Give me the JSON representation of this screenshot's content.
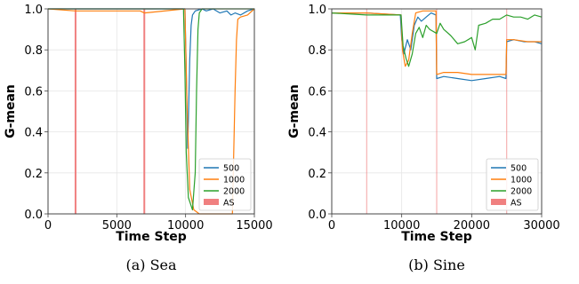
{
  "colors": {
    "s500": "#1f77b4",
    "s1000": "#ff7f0e",
    "s2000": "#2ca02c",
    "as": "#f08080"
  },
  "chart_data": [
    {
      "type": "line",
      "caption": "(a) Sea",
      "xlabel": "Time Step",
      "ylabel": "G-mean",
      "xlim": [
        0,
        15000
      ],
      "ylim": [
        0.0,
        1.0
      ],
      "xticks": [
        "0",
        "5000",
        "10000",
        "15000"
      ],
      "yticks": [
        "0.0",
        "0.2",
        "0.4",
        "0.6",
        "0.8",
        "1.0"
      ],
      "grid": true,
      "legend_position": "lower-right",
      "as_label": "AS",
      "as_lines": [
        2000,
        7000
      ],
      "series": [
        {
          "name": "500",
          "color": "#1f77b4",
          "points": [
            [
              0,
              1.0
            ],
            [
              9950,
              1.0
            ],
            [
              10050,
              0.7
            ],
            [
              10150,
              0.32
            ],
            [
              10200,
              0.45
            ],
            [
              10300,
              0.75
            ],
            [
              10400,
              0.92
            ],
            [
              10500,
              0.97
            ],
            [
              10700,
              0.99
            ],
            [
              11200,
              1.0
            ],
            [
              11500,
              0.99
            ],
            [
              12000,
              1.0
            ],
            [
              12500,
              0.98
            ],
            [
              13000,
              0.99
            ],
            [
              13300,
              0.97
            ],
            [
              13600,
              0.98
            ],
            [
              14000,
              0.97
            ],
            [
              14500,
              0.99
            ],
            [
              15000,
              1.0
            ]
          ]
        },
        {
          "name": "1000",
          "color": "#ff7f0e",
          "points": [
            [
              0,
              1.0
            ],
            [
              2000,
              0.99
            ],
            [
              6700,
              0.99
            ],
            [
              7000,
              0.98
            ],
            [
              9950,
              1.0
            ],
            [
              10100,
              0.55
            ],
            [
              10300,
              0.12
            ],
            [
              10600,
              0.02
            ],
            [
              11000,
              0.0
            ],
            [
              13400,
              0.0
            ],
            [
              13500,
              0.3
            ],
            [
              13600,
              0.6
            ],
            [
              13700,
              0.85
            ],
            [
              13800,
              0.95
            ],
            [
              14000,
              0.96
            ],
            [
              14500,
              0.97
            ],
            [
              15000,
              1.0
            ]
          ]
        },
        {
          "name": "2000",
          "color": "#2ca02c",
          "points": [
            [
              0,
              1.0
            ],
            [
              9850,
              1.0
            ],
            [
              9950,
              0.7
            ],
            [
              10050,
              0.3
            ],
            [
              10200,
              0.08
            ],
            [
              10500,
              0.02
            ],
            [
              10700,
              0.2
            ],
            [
              10800,
              0.6
            ],
            [
              10900,
              0.9
            ],
            [
              11000,
              0.98
            ],
            [
              11200,
              1.0
            ],
            [
              15000,
              1.0
            ]
          ]
        }
      ]
    },
    {
      "type": "line",
      "caption": "(b) Sine",
      "xlabel": "Time Step",
      "ylabel": "G-mean",
      "xlim": [
        0,
        30000
      ],
      "ylim": [
        0.0,
        1.0
      ],
      "xticks": [
        "0",
        "10000",
        "20000",
        "30000"
      ],
      "yticks": [
        "0.0",
        "0.2",
        "0.4",
        "0.6",
        "0.8",
        "1.0"
      ],
      "grid": true,
      "legend_position": "lower-right",
      "as_label": "AS",
      "as_lines": [
        5000,
        15000,
        25000
      ],
      "series": [
        {
          "name": "500",
          "color": "#1f77b4",
          "points": [
            [
              0,
              0.98
            ],
            [
              5000,
              0.98
            ],
            [
              9800,
              0.97
            ],
            [
              10000,
              0.85
            ],
            [
              10300,
              0.78
            ],
            [
              10800,
              0.85
            ],
            [
              11300,
              0.8
            ],
            [
              11800,
              0.92
            ],
            [
              12300,
              0.96
            ],
            [
              12800,
              0.94
            ],
            [
              13500,
              0.96
            ],
            [
              14200,
              0.98
            ],
            [
              14900,
              0.97
            ],
            [
              15000,
              0.66
            ],
            [
              16000,
              0.67
            ],
            [
              18000,
              0.66
            ],
            [
              20000,
              0.65
            ],
            [
              22000,
              0.66
            ],
            [
              24000,
              0.67
            ],
            [
              24900,
              0.66
            ],
            [
              25000,
              0.84
            ],
            [
              26000,
              0.85
            ],
            [
              27500,
              0.84
            ],
            [
              29000,
              0.84
            ],
            [
              30000,
              0.83
            ]
          ]
        },
        {
          "name": "1000",
          "color": "#ff7f0e",
          "points": [
            [
              0,
              0.98
            ],
            [
              5000,
              0.98
            ],
            [
              9900,
              0.97
            ],
            [
              10100,
              0.8
            ],
            [
              10500,
              0.72
            ],
            [
              11000,
              0.75
            ],
            [
              11500,
              0.88
            ],
            [
              12000,
              0.98
            ],
            [
              13000,
              0.99
            ],
            [
              14000,
              0.99
            ],
            [
              14900,
              0.99
            ],
            [
              15000,
              0.68
            ],
            [
              16000,
              0.69
            ],
            [
              18000,
              0.69
            ],
            [
              20000,
              0.68
            ],
            [
              22000,
              0.68
            ],
            [
              24000,
              0.68
            ],
            [
              24900,
              0.68
            ],
            [
              25000,
              0.85
            ],
            [
              26000,
              0.85
            ],
            [
              28000,
              0.84
            ],
            [
              30000,
              0.84
            ]
          ]
        },
        {
          "name": "2000",
          "color": "#2ca02c",
          "points": [
            [
              0,
              0.98
            ],
            [
              5000,
              0.97
            ],
            [
              9900,
              0.97
            ],
            [
              10200,
              0.82
            ],
            [
              10600,
              0.76
            ],
            [
              11000,
              0.72
            ],
            [
              11500,
              0.78
            ],
            [
              12000,
              0.88
            ],
            [
              12500,
              0.91
            ],
            [
              13000,
              0.86
            ],
            [
              13500,
              0.92
            ],
            [
              14000,
              0.9
            ],
            [
              15000,
              0.88
            ],
            [
              15500,
              0.93
            ],
            [
              16000,
              0.9
            ],
            [
              17000,
              0.87
            ],
            [
              18000,
              0.83
            ],
            [
              19000,
              0.84
            ],
            [
              20000,
              0.86
            ],
            [
              20500,
              0.8
            ],
            [
              21000,
              0.92
            ],
            [
              22000,
              0.93
            ],
            [
              23000,
              0.95
            ],
            [
              24000,
              0.95
            ],
            [
              25000,
              0.97
            ],
            [
              26000,
              0.96
            ],
            [
              27000,
              0.96
            ],
            [
              28000,
              0.95
            ],
            [
              29000,
              0.97
            ],
            [
              30000,
              0.96
            ]
          ]
        }
      ]
    }
  ]
}
